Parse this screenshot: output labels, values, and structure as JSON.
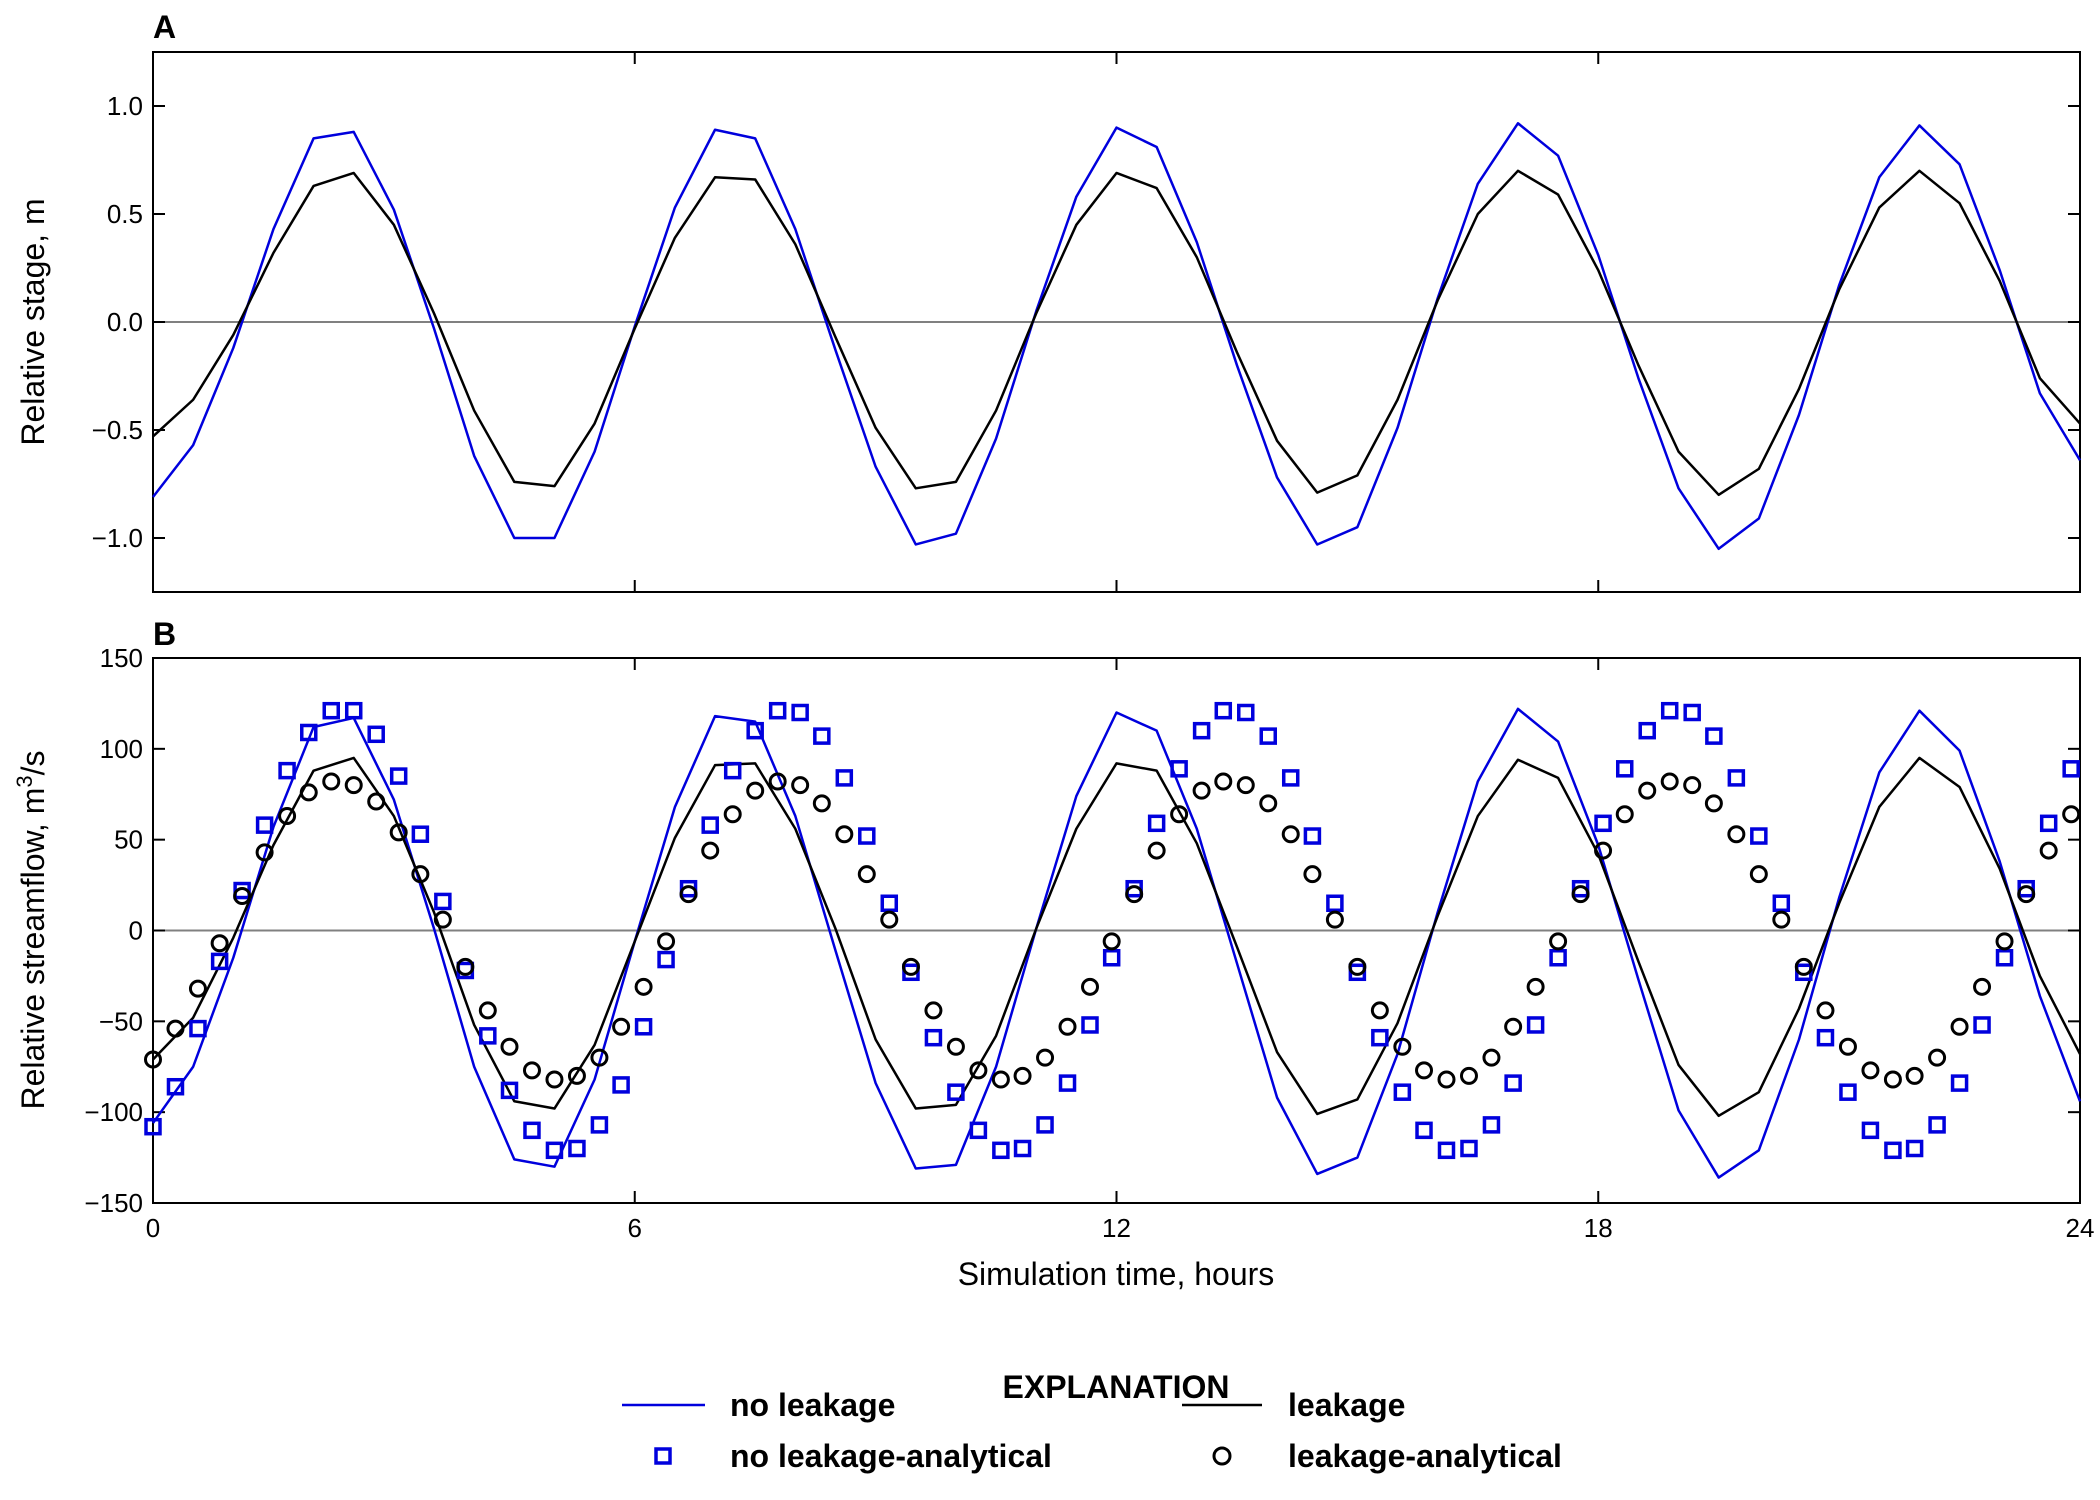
{
  "chart_data": [
    {
      "panel": "A",
      "type": "line",
      "xlabel": "",
      "ylabel": "Relative stage, m",
      "xlim": [
        0,
        24
      ],
      "ylim": [
        -1.25,
        1.25
      ],
      "xticks": [
        0,
        6,
        12,
        18,
        24
      ],
      "yticks": [
        {
          "value": 1.0,
          "label": "1.0"
        },
        {
          "value": 0.5,
          "label": "0.5"
        },
        {
          "value": 0.0,
          "label": "0.0"
        },
        {
          "value": -0.5,
          "label": "−0.5"
        },
        {
          "value": -1.0,
          "label": "−1.0"
        }
      ],
      "zero_line": true,
      "series": [
        {
          "name": "no leakage",
          "style": "line",
          "color": "#0000dd",
          "x": [
            0,
            0.5,
            1,
            1.5,
            2,
            2.5,
            3,
            3.5,
            4,
            4.5,
            5,
            5.5,
            6,
            6.5,
            7,
            7.5,
            8,
            8.5,
            9,
            9.5,
            10,
            10.5,
            11,
            11.5,
            12,
            12.5,
            13,
            13.5,
            14,
            14.5,
            15,
            15.5,
            16,
            16.5,
            17,
            17.5,
            18,
            18.5,
            19,
            19.5,
            20,
            20.5,
            21,
            21.5,
            22,
            22.5,
            23,
            23.5,
            24
          ],
          "y": [
            -0.81,
            -0.57,
            -0.12,
            0.43,
            0.85,
            0.88,
            0.52,
            -0.03,
            -0.62,
            -1.0,
            -1.0,
            -0.6,
            -0.02,
            0.53,
            0.89,
            0.85,
            0.43,
            -0.13,
            -0.67,
            -1.03,
            -0.98,
            -0.54,
            0.05,
            0.58,
            0.9,
            0.81,
            0.37,
            -0.2,
            -0.72,
            -1.03,
            -0.95,
            -0.49,
            0.11,
            0.64,
            0.92,
            0.77,
            0.31,
            -0.26,
            -0.77,
            -1.05,
            -0.91,
            -0.43,
            0.17,
            0.67,
            0.91,
            0.73,
            0.24,
            -0.33,
            -0.64
          ]
        },
        {
          "name": "leakage",
          "style": "line",
          "color": "#000000",
          "x": [
            0,
            0.5,
            1,
            1.5,
            2,
            2.5,
            3,
            3.5,
            4,
            4.5,
            5,
            5.5,
            6,
            6.5,
            7,
            7.5,
            8,
            8.5,
            9,
            9.5,
            10,
            10.5,
            11,
            11.5,
            12,
            12.5,
            13,
            13.5,
            14,
            14.5,
            15,
            15.5,
            16,
            16.5,
            17,
            17.5,
            18,
            18.5,
            19,
            19.5,
            20,
            20.5,
            21,
            21.5,
            22,
            22.5,
            23,
            23.5,
            24
          ],
          "y": [
            -0.53,
            -0.36,
            -0.06,
            0.32,
            0.63,
            0.69,
            0.45,
            0.04,
            -0.41,
            -0.74,
            -0.76,
            -0.47,
            -0.03,
            0.39,
            0.67,
            0.66,
            0.36,
            -0.07,
            -0.49,
            -0.77,
            -0.74,
            -0.41,
            0.04,
            0.45,
            0.69,
            0.62,
            0.3,
            -0.14,
            -0.55,
            -0.79,
            -0.71,
            -0.36,
            0.1,
            0.5,
            0.7,
            0.59,
            0.24,
            -0.2,
            -0.6,
            -0.8,
            -0.68,
            -0.31,
            0.15,
            0.53,
            0.7,
            0.55,
            0.19,
            -0.26,
            -0.47
          ]
        }
      ]
    },
    {
      "panel": "B",
      "type": "line",
      "xlabel": "Simulation time, hours",
      "ylabel_parts": [
        "Relative streamflow, m",
        "3",
        "/s"
      ],
      "xlim": [
        0,
        24
      ],
      "ylim": [
        -150,
        150
      ],
      "xticks": [
        0,
        6,
        12,
        18,
        24
      ],
      "yticks": [
        {
          "value": 150,
          "label": "150"
        },
        {
          "value": 100,
          "label": "100"
        },
        {
          "value": 50,
          "label": "50"
        },
        {
          "value": 0,
          "label": "0"
        },
        {
          "value": -50,
          "label": "−50"
        },
        {
          "value": -100,
          "label": "−100"
        },
        {
          "value": -150,
          "label": "−150"
        }
      ],
      "zero_line": true,
      "series": [
        {
          "name": "no leakage",
          "style": "line",
          "color": "#0000dd",
          "x": [
            0,
            0.5,
            1,
            1.5,
            2,
            2.5,
            3,
            3.5,
            4,
            4.5,
            5,
            5.5,
            6,
            6.5,
            7,
            7.5,
            8,
            8.5,
            9,
            9.5,
            10,
            10.5,
            11,
            11.5,
            12,
            12.5,
            13,
            13.5,
            14,
            14.5,
            15,
            15.5,
            16,
            16.5,
            17,
            17.5,
            18,
            18.5,
            19,
            19.5,
            20,
            20.5,
            21,
            21.5,
            22,
            22.5,
            23,
            23.5,
            24
          ],
          "y": [
            -106,
            -75,
            -15,
            57,
            112,
            117,
            72,
            1,
            -75,
            -126,
            -130,
            -82,
            -6,
            68,
            118,
            115,
            63,
            -11,
            -84,
            -131,
            -129,
            -75,
            1,
            74,
            120,
            110,
            56,
            -18,
            -92,
            -134,
            -125,
            -68,
            10,
            82,
            122,
            104,
            47,
            -27,
            -99,
            -136,
            -121,
            -60,
            18,
            87,
            121,
            99,
            38,
            -36,
            -94
          ]
        },
        {
          "name": "leakage",
          "style": "line",
          "color": "#000000",
          "x": [
            0,
            0.5,
            1,
            1.5,
            2,
            2.5,
            3,
            3.5,
            4,
            4.5,
            5,
            5.5,
            6,
            6.5,
            7,
            7.5,
            8,
            8.5,
            9,
            9.5,
            10,
            10.5,
            11,
            11.5,
            12,
            12.5,
            13,
            13.5,
            14,
            14.5,
            15,
            15.5,
            16,
            16.5,
            17,
            17.5,
            18,
            18.5,
            19,
            19.5,
            20,
            20.5,
            21,
            21.5,
            22,
            22.5,
            23,
            23.5,
            24
          ],
          "y": [
            -71,
            -48,
            -4,
            47,
            88,
            95,
            63,
            10,
            -52,
            -94,
            -98,
            -63,
            -6,
            51,
            91,
            92,
            56,
            1,
            -60,
            -98,
            -96,
            -58,
            1,
            56,
            92,
            88,
            48,
            -9,
            -67,
            -101,
            -93,
            -51,
            8,
            63,
            94,
            84,
            42,
            -17,
            -74,
            -102,
            -89,
            -43,
            15,
            68,
            95,
            79,
            34,
            -25,
            -68
          ]
        },
        {
          "name": "no leakage-analytical",
          "style": "square",
          "color": "#0000dd",
          "x": [
            0,
            0.28,
            0.56,
            0.83,
            1.11,
            1.39,
            1.67,
            1.94,
            2.22,
            2.5,
            2.78,
            3.06,
            3.33,
            3.61,
            3.89,
            4.17,
            4.44,
            4.72,
            5,
            5.28,
            5.56,
            5.83,
            6.11,
            6.39,
            6.67,
            6.94,
            7.22,
            7.5,
            7.78,
            8.06,
            8.33,
            8.61,
            8.89,
            9.17,
            9.44,
            9.72,
            10,
            10.28,
            10.56,
            10.83,
            11.11,
            11.39,
            11.67,
            11.94,
            12.22,
            12.5,
            12.78,
            13.06,
            13.33,
            13.61,
            13.89,
            14.17,
            14.44,
            14.72,
            15,
            15.28,
            15.56,
            15.83,
            16.11,
            16.39,
            16.67,
            16.94,
            17.22,
            17.5,
            17.78,
            18.06,
            18.33,
            18.61,
            18.89,
            19.17,
            19.44,
            19.72,
            20,
            20.28,
            20.56,
            20.83,
            21.11,
            21.39,
            21.67,
            21.94,
            22.22,
            22.5,
            22.78,
            23.06,
            23.33,
            23.61,
            23.89
          ],
          "y": [
            -108,
            -86,
            -54,
            -17,
            22,
            58,
            88,
            109,
            121,
            121,
            108,
            85,
            53,
            16,
            -22,
            -58,
            -88,
            -110,
            -121,
            -120,
            -107,
            -85,
            -53,
            -16,
            23,
            58,
            88,
            110,
            121,
            120,
            107,
            84,
            52,
            15,
            -23,
            -59,
            -89,
            -110,
            -121,
            -120,
            -107,
            -84,
            -52,
            -15,
            23,
            59,
            89,
            110,
            121,
            120,
            107,
            84,
            52,
            15,
            -23,
            -59,
            -89,
            -110,
            -121,
            -120,
            -107,
            -84,
            -52,
            -15,
            23,
            59,
            89,
            110,
            121,
            120,
            107,
            84,
            52,
            15,
            -23,
            -59,
            -89,
            -110,
            -121,
            -120,
            -107,
            -84,
            -52,
            -15,
            23,
            59,
            89
          ]
        },
        {
          "name": "leakage-analytical",
          "style": "circle",
          "color": "#000000",
          "x": [
            0,
            0.28,
            0.56,
            0.83,
            1.11,
            1.39,
            1.67,
            1.94,
            2.22,
            2.5,
            2.78,
            3.06,
            3.33,
            3.61,
            3.89,
            4.17,
            4.44,
            4.72,
            5,
            5.28,
            5.56,
            5.83,
            6.11,
            6.39,
            6.67,
            6.94,
            7.22,
            7.5,
            7.78,
            8.06,
            8.33,
            8.61,
            8.89,
            9.17,
            9.44,
            9.72,
            10,
            10.28,
            10.56,
            10.83,
            11.11,
            11.39,
            11.67,
            11.94,
            12.22,
            12.5,
            12.78,
            13.06,
            13.33,
            13.61,
            13.89,
            14.17,
            14.44,
            14.72,
            15,
            15.28,
            15.56,
            15.83,
            16.11,
            16.39,
            16.67,
            16.94,
            17.22,
            17.5,
            17.78,
            18.06,
            18.33,
            18.61,
            18.89,
            19.17,
            19.44,
            19.72,
            20,
            20.28,
            20.56,
            20.83,
            21.11,
            21.39,
            21.67,
            21.94,
            22.22,
            22.5,
            22.78,
            23.06,
            23.33,
            23.61,
            23.89
          ],
          "y": [
            -71,
            -54,
            -32,
            -7,
            19,
            43,
            63,
            76,
            82,
            80,
            71,
            54,
            31,
            6,
            -20,
            -44,
            -64,
            -77,
            -82,
            -80,
            -70,
            -53,
            -31,
            -6,
            20,
            44,
            64,
            77,
            82,
            80,
            70,
            53,
            31,
            6,
            -20,
            -44,
            -64,
            -77,
            -82,
            -80,
            -70,
            -53,
            -31,
            -6,
            20,
            44,
            64,
            77,
            82,
            80,
            70,
            53,
            31,
            6,
            -20,
            -44,
            -64,
            -77,
            -82,
            -80,
            -70,
            -53,
            -31,
            -6,
            20,
            44,
            64,
            77,
            82,
            80,
            70,
            53,
            31,
            6,
            -20,
            -44,
            -64,
            -77,
            -82,
            -80,
            -70,
            -53,
            -31,
            -6,
            20,
            44,
            64
          ]
        }
      ]
    }
  ],
  "legend": {
    "title": "EXPLANATION",
    "placement": "bottom-center",
    "items": [
      {
        "label": "no leakage",
        "style": "line",
        "color": "#0000dd"
      },
      {
        "label": "leakage",
        "style": "line",
        "color": "#000000"
      },
      {
        "label": "no leakage-analytical",
        "style": "square",
        "color": "#0000dd"
      },
      {
        "label": "leakage-analytical",
        "style": "circle",
        "color": "#000000"
      }
    ]
  }
}
